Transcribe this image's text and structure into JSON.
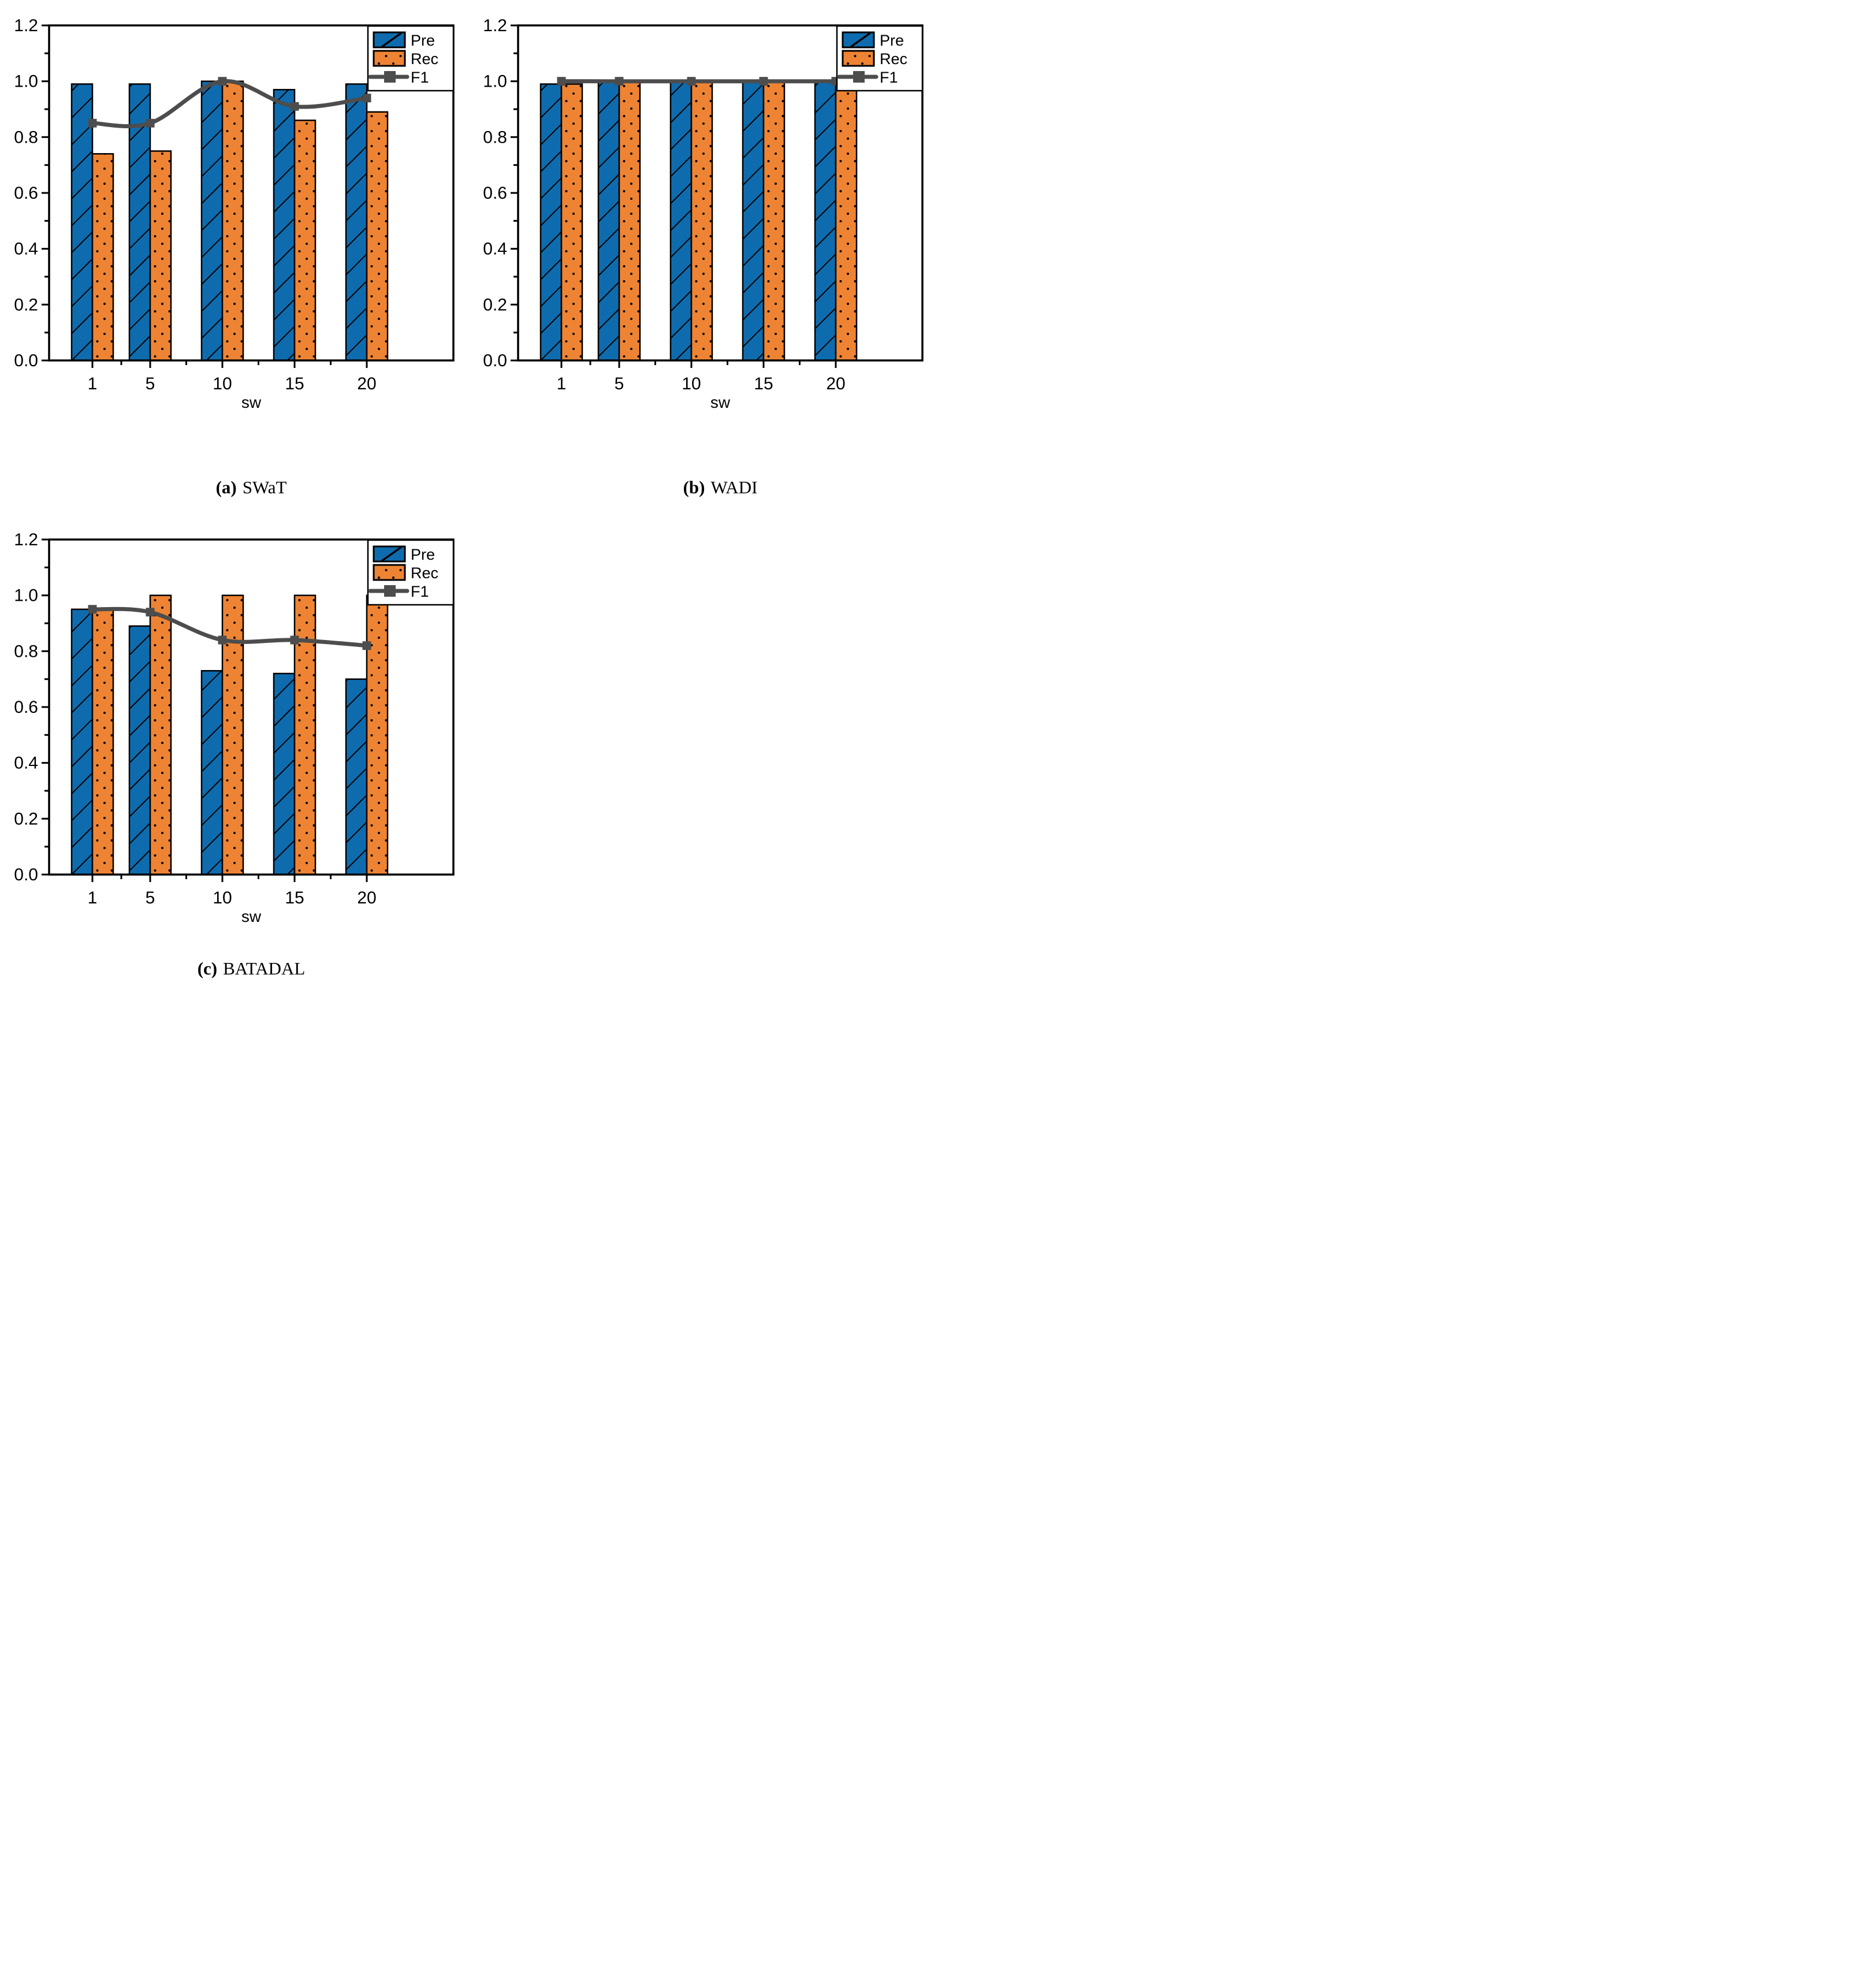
{
  "page": {
    "background": "#ffffff"
  },
  "colors": {
    "pre_fill": "#0E6CAE",
    "rec_fill": "#EE8433",
    "f1_line": "#4D4D4D",
    "bar_outline": "#000000",
    "axis": "#000000",
    "legend_bg": "#ffffff",
    "text": "#000000"
  },
  "legend": {
    "items": [
      {
        "key": "pre",
        "label": "Pre"
      },
      {
        "key": "rec",
        "label": "Rec"
      },
      {
        "key": "f1",
        "label": "F1"
      }
    ]
  },
  "axes": {
    "xlabel": "sw",
    "ylim": [
      0,
      1.2
    ],
    "y_tick_step": 0.2,
    "y_minor_step": 0.1,
    "y_tick_labels": [
      "0.0",
      "0.2",
      "0.4",
      "0.6",
      "0.8",
      "1.0",
      "1.2"
    ],
    "x_tick_labels": [
      "1",
      "5",
      "10",
      "15",
      "20"
    ],
    "x_minor_ticks": [
      3,
      7.5,
      12.5,
      17.5
    ],
    "grid": false
  },
  "captions": [
    {
      "label": "(a)",
      "text": "SWaT"
    },
    {
      "label": "(b)",
      "text": "WADI"
    },
    {
      "label": "(c)",
      "text": "BATADAL"
    }
  ],
  "chart_data": [
    {
      "type": "bar",
      "title": "SWaT",
      "categories": [
        1,
        5,
        10,
        15,
        20
      ],
      "xlabel": "sw",
      "ylabel": "",
      "ylim": [
        0,
        1.2
      ],
      "legend_position": "top-right",
      "grid": false,
      "series": [
        {
          "name": "Pre",
          "style": "bar-hatched",
          "values": [
            0.99,
            0.99,
            1.0,
            0.97,
            0.99
          ]
        },
        {
          "name": "Rec",
          "style": "bar-dotted",
          "values": [
            0.74,
            0.75,
            1.0,
            0.86,
            0.89
          ]
        },
        {
          "name": "F1",
          "style": "line-square-markers",
          "values": [
            0.85,
            0.85,
            1.0,
            0.91,
            0.94
          ]
        }
      ]
    },
    {
      "type": "bar",
      "title": "WADI",
      "categories": [
        1,
        5,
        10,
        15,
        20
      ],
      "xlabel": "sw",
      "ylabel": "",
      "ylim": [
        0,
        1.2
      ],
      "legend_position": "top-right",
      "grid": false,
      "series": [
        {
          "name": "Pre",
          "style": "bar-hatched",
          "values": [
            0.99,
            1.0,
            1.0,
            1.0,
            1.0
          ]
        },
        {
          "name": "Rec",
          "style": "bar-dotted",
          "values": [
            0.99,
            1.0,
            1.0,
            1.0,
            0.99
          ]
        },
        {
          "name": "F1",
          "style": "line-square-markers",
          "values": [
            1.0,
            1.0,
            1.0,
            1.0,
            1.0
          ]
        }
      ]
    },
    {
      "type": "bar",
      "title": "BATADAL",
      "categories": [
        1,
        5,
        10,
        15,
        20
      ],
      "xlabel": "sw",
      "ylabel": "",
      "ylim": [
        0,
        1.2
      ],
      "legend_position": "top-right",
      "grid": false,
      "series": [
        {
          "name": "Pre",
          "style": "bar-hatched",
          "values": [
            0.95,
            0.89,
            0.73,
            0.72,
            0.7
          ]
        },
        {
          "name": "Rec",
          "style": "bar-dotted",
          "values": [
            0.95,
            1.0,
            1.0,
            1.0,
            1.0
          ]
        },
        {
          "name": "F1",
          "style": "line-square-markers",
          "values": [
            0.95,
            0.94,
            0.84,
            0.84,
            0.82
          ]
        }
      ]
    }
  ]
}
